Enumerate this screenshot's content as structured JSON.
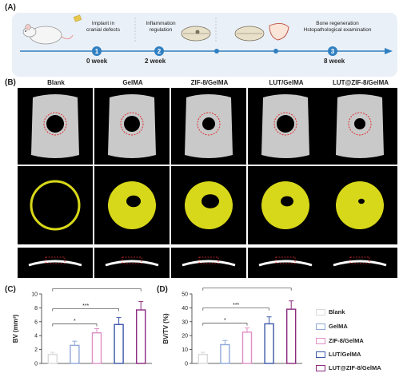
{
  "panels": {
    "a": "(A)",
    "b": "(B)",
    "c": "(C)",
    "d": "(D)"
  },
  "timeline": {
    "steps": [
      {
        "num": "1",
        "week": "0 week",
        "desc_lines": [
          "Implant in",
          "cranial defects"
        ]
      },
      {
        "num": "2",
        "week": "2 week",
        "desc_lines": [
          "Inflammation",
          "regulation"
        ]
      },
      {
        "num": "3",
        "week": "8 week",
        "desc_lines": [
          "Bone regeneration",
          "Hstopathological examination"
        ]
      }
    ],
    "line_color": "#2f7fc1"
  },
  "groups": [
    "Blank",
    "GelMA",
    "ZIF-8/GelMA",
    "LUT/GelMA",
    "LUT@ZIF-8/GelMA"
  ],
  "legend_colors": [
    "#d9d9d9",
    "#8fa9d8",
    "#e08fc4",
    "#3b57a8",
    "#8c2a7f"
  ],
  "chart_data": [
    {
      "type": "bar",
      "panel": "(C)",
      "ylabel": "BV (mm³)",
      "categories": [
        "Blank",
        "GelMA",
        "ZIF-8/GelMA",
        "LUT/GelMA",
        "LUT@ZIF-8/GelMA"
      ],
      "values": [
        1.3,
        2.6,
        4.4,
        5.6,
        7.7
      ],
      "errors": [
        0.3,
        0.6,
        0.6,
        1.0,
        1.2
      ],
      "ylim": [
        0,
        10
      ],
      "yticks": [
        "0",
        "2",
        "4",
        "6",
        "8",
        "10"
      ],
      "significance": [
        "*",
        "***",
        "**"
      ]
    },
    {
      "type": "bar",
      "panel": "(D)",
      "ylabel": "BV/TV (%)",
      "categories": [
        "Blank",
        "GelMA",
        "ZIF-8/GelMA",
        "LUT/GelMA",
        "LUT@ZIF-8/GelMA"
      ],
      "values": [
        6.5,
        13.5,
        22.5,
        28.5,
        39
      ],
      "errors": [
        1.5,
        3,
        3,
        5,
        6
      ],
      "ylim": [
        0,
        50
      ],
      "yticks": [
        "0",
        "10",
        "20",
        "30",
        "40",
        "50"
      ],
      "significance": [
        "*",
        "***",
        "**"
      ]
    }
  ]
}
